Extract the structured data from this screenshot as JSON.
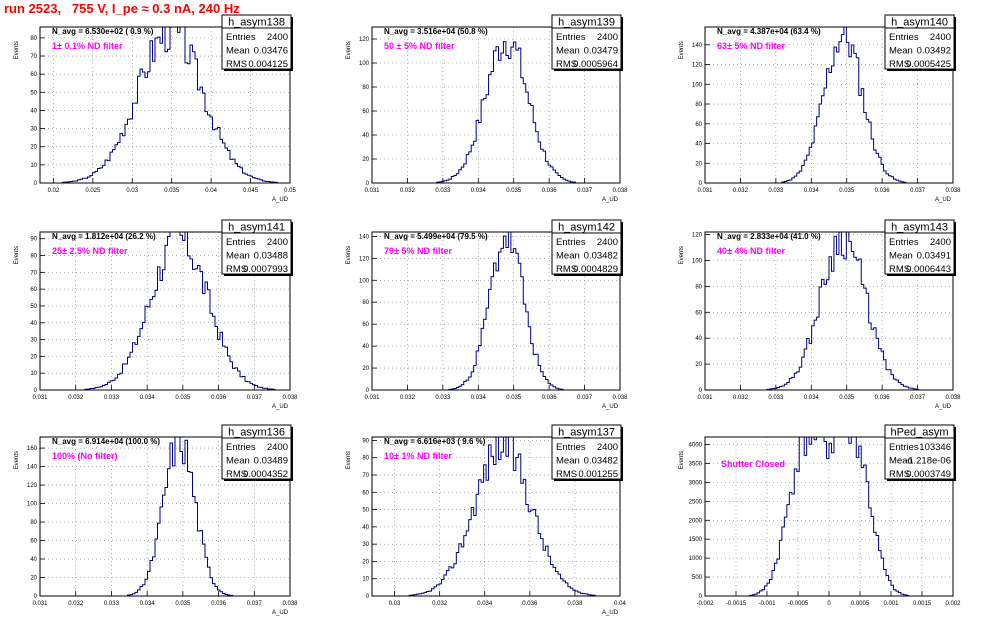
{
  "page": {
    "title": "run 2523,   755 V, I_pe ≈ 0.3 nA, 240 Hz",
    "title_color": "#ff0000"
  },
  "colors": {
    "histogram": "#000080",
    "annotation": "#ff00ff",
    "grid": "#808080",
    "text": "#000000"
  },
  "chart_data": [
    {
      "type": "bar",
      "histogram": "h_asym138",
      "entries": "2400",
      "mean": "0.03476",
      "rms": "0.004125",
      "navg": "N_avg = 6.530e+02 ( 0.9 %)",
      "filter": "1± 0.1% ND filter",
      "xlabel": "A_UD",
      "ylabel": "Events",
      "xlim": [
        0.0183,
        0.05
      ],
      "ylim": [
        0,
        86
      ],
      "center": 0.0348,
      "sigma": 0.0041,
      "peak": 84,
      "seed": 3,
      "xticks": [
        "0.02",
        "0.025",
        "0.03",
        "0.035",
        "0.04",
        "0.045",
        "0.05"
      ],
      "xtickv": [
        0.02,
        0.025,
        0.03,
        0.035,
        0.04,
        0.045,
        0.05
      ],
      "yticks": [
        "0",
        "10",
        "20",
        "30",
        "40",
        "50",
        "60",
        "70",
        "80"
      ],
      "ytickv": [
        0,
        10,
        20,
        30,
        40,
        50,
        60,
        70,
        80
      ]
    },
    {
      "type": "bar",
      "histogram": "h_asym139",
      "entries": "2400",
      "mean": "0.03479",
      "rms": "0.0005964",
      "navg": "N_avg = 3.516e+04 (50.8 %)",
      "filter": "50 ± 5% ND filter",
      "xlabel": "A_UD",
      "ylabel": "Events",
      "xlim": [
        0.031,
        0.038
      ],
      "ylim": [
        0,
        130
      ],
      "center": 0.0348,
      "sigma": 0.0006,
      "peak": 120,
      "seed": 7,
      "xticks": [
        "0.031",
        "0.032",
        "0.033",
        "0.034",
        "0.035",
        "0.036",
        "0.037",
        "0.038"
      ],
      "xtickv": [
        0.031,
        0.032,
        0.033,
        0.034,
        0.035,
        0.036,
        0.037,
        0.038
      ],
      "yticks": [
        "0",
        "20",
        "40",
        "60",
        "80",
        "100",
        "120"
      ],
      "ytickv": [
        0,
        20,
        40,
        60,
        80,
        100,
        120
      ]
    },
    {
      "type": "bar",
      "histogram": "h_asym140",
      "entries": "2400",
      "mean": "0.03492",
      "rms": "0.0005425",
      "navg": "N_avg = 4.387e+04 (63.4 %)",
      "filter": "63± 5% ND filter",
      "xlabel": "A_UD",
      "ylabel": "Events",
      "xlim": [
        0.031,
        0.038
      ],
      "ylim": [
        0,
        158
      ],
      "center": 0.0349,
      "sigma": 0.00054,
      "peak": 150,
      "seed": 11,
      "xticks": [
        "0.031",
        "0.032",
        "0.033",
        "0.034",
        "0.035",
        "0.036",
        "0.037",
        "0.038"
      ],
      "xtickv": [
        0.031,
        0.032,
        0.033,
        0.034,
        0.035,
        0.036,
        0.037,
        0.038
      ],
      "yticks": [
        "0",
        "20",
        "40",
        "60",
        "80",
        "100",
        "120",
        "140"
      ],
      "ytickv": [
        0,
        20,
        40,
        60,
        80,
        100,
        120,
        140
      ]
    },
    {
      "type": "bar",
      "histogram": "h_asym141",
      "entries": "2400",
      "mean": "0.03488",
      "rms": "0.0007993",
      "navg": "N_avg = 1.812e+04 (26.2 %)",
      "filter": "25± 2.5% ND filter",
      "xlabel": "A_UD",
      "ylabel": "Events",
      "xlim": [
        0.031,
        0.038
      ],
      "ylim": [
        0,
        94
      ],
      "center": 0.0349,
      "sigma": 0.0008,
      "peak": 90,
      "seed": 17,
      "xticks": [
        "0.031",
        "0.032",
        "0.033",
        "0.034",
        "0.035",
        "0.036",
        "0.037",
        "0.038"
      ],
      "xtickv": [
        0.031,
        0.032,
        0.033,
        0.034,
        0.035,
        0.036,
        0.037,
        0.038
      ],
      "yticks": [
        "0",
        "10",
        "20",
        "30",
        "40",
        "50",
        "60",
        "70",
        "80",
        "90"
      ],
      "ytickv": [
        0,
        10,
        20,
        30,
        40,
        50,
        60,
        70,
        80,
        90
      ]
    },
    {
      "type": "bar",
      "histogram": "h_asym142",
      "entries": "2400",
      "mean": "0.03482",
      "rms": "0.0004829",
      "navg": "N_avg = 5.499e+04 (79.5 %)",
      "filter": "79± 5% ND filter",
      "xlabel": "A_UD",
      "ylabel": "Events",
      "xlim": [
        0.031,
        0.038
      ],
      "ylim": [
        0,
        144
      ],
      "center": 0.0348,
      "sigma": 0.00048,
      "peak": 140,
      "seed": 23,
      "xticks": [
        "0.031",
        "0.032",
        "0.033",
        "0.034",
        "0.035",
        "0.036",
        "0.037",
        "0.038"
      ],
      "xtickv": [
        0.031,
        0.032,
        0.033,
        0.034,
        0.035,
        0.036,
        0.037,
        0.038
      ],
      "yticks": [
        "0",
        "20",
        "40",
        "60",
        "80",
        "100",
        "120",
        "140"
      ],
      "ytickv": [
        0,
        20,
        40,
        60,
        80,
        100,
        120,
        140
      ]
    },
    {
      "type": "bar",
      "histogram": "h_asym143",
      "entries": "2400",
      "mean": "0.03491",
      "rms": "0.0006443",
      "navg": "N_avg = 2.833e+04 (41.0 %)",
      "filter": "40± 4% ND filter",
      "xlabel": "A_UD",
      "ylabel": "Events",
      "xlim": [
        0.031,
        0.038
      ],
      "ylim": [
        0,
        122
      ],
      "center": 0.0349,
      "sigma": 0.00064,
      "peak": 118,
      "seed": 29,
      "xticks": [
        "0.031",
        "0.032",
        "0.033",
        "0.034",
        "0.035",
        "0.036",
        "0.037",
        "0.038"
      ],
      "xtickv": [
        0.031,
        0.032,
        0.033,
        0.034,
        0.035,
        0.036,
        0.037,
        0.038
      ],
      "yticks": [
        "0",
        "20",
        "40",
        "60",
        "80",
        "100",
        "120"
      ],
      "ytickv": [
        0,
        20,
        40,
        60,
        80,
        100,
        120
      ]
    },
    {
      "type": "bar",
      "histogram": "h_asym136",
      "entries": "2400",
      "mean": "0.03489",
      "rms": "0.0004352",
      "navg": "N_avg = 6.914e+04 (100.0 %)",
      "filter": "100% (No filter)",
      "xlabel": "A_UD",
      "ylabel": "Events",
      "xlim": [
        0.031,
        0.038
      ],
      "ylim": [
        0,
        172
      ],
      "center": 0.0349,
      "sigma": 0.00044,
      "peak": 170,
      "seed": 31,
      "xticks": [
        "0.031",
        "0.032",
        "0.033",
        "0.034",
        "0.035",
        "0.036",
        "0.037",
        "0.038"
      ],
      "xtickv": [
        0.031,
        0.032,
        0.033,
        0.034,
        0.035,
        0.036,
        0.037,
        0.038
      ],
      "yticks": [
        "0",
        "20",
        "40",
        "60",
        "80",
        "100",
        "120",
        "140",
        "160"
      ],
      "ytickv": [
        0,
        20,
        40,
        60,
        80,
        100,
        120,
        140,
        160
      ]
    },
    {
      "type": "bar",
      "histogram": "h_asym137",
      "entries": "2400",
      "mean": "0.03482",
      "rms": "0.001255",
      "navg": "N_avg = 6.616e+03 ( 9.6 %)",
      "filter": "10± 1% ND filter",
      "xlabel": "A_UD",
      "ylabel": "Events",
      "xlim": [
        0.029,
        0.04
      ],
      "ylim": [
        0,
        92
      ],
      "center": 0.0348,
      "sigma": 0.00125,
      "peak": 88,
      "seed": 37,
      "xticks": [
        "0.03",
        "0.032",
        "0.034",
        "0.036",
        "0.038",
        "0.04"
      ],
      "xtickv": [
        0.03,
        0.032,
        0.034,
        0.036,
        0.038,
        0.04
      ],
      "yticks": [
        "0",
        "10",
        "20",
        "30",
        "40",
        "50",
        "60",
        "70",
        "80",
        "90"
      ],
      "ytickv": [
        0,
        10,
        20,
        30,
        40,
        50,
        60,
        70,
        80,
        90
      ]
    },
    {
      "type": "bar",
      "histogram": "hPed_asym",
      "entries": "103346",
      "mean": "-1.218e-06",
      "rms": "0.0003749",
      "navg": "",
      "filter": "Shutter Closed",
      "xlabel": "",
      "ylabel": "Events",
      "xlim": [
        -0.002,
        0.002
      ],
      "ylim": [
        0,
        4200
      ],
      "bimodal": true,
      "peak": 3950,
      "seed": 41,
      "xticks": [
        "-0.002",
        "-0.0015",
        "-0.001",
        "-0.0005",
        "0",
        "0.0005",
        "0.001",
        "0.0015",
        "0.002"
      ],
      "xtickv": [
        -0.002,
        -0.0015,
        -0.001,
        -0.0005,
        0,
        0.0005,
        0.001,
        0.0015,
        0.002
      ],
      "yticks": [
        "0",
        "500",
        "1000",
        "1500",
        "2000",
        "2500",
        "3000",
        "3500",
        "4000"
      ],
      "ytickv": [
        0,
        500,
        1000,
        1500,
        2000,
        2500,
        3000,
        3500,
        4000
      ]
    }
  ]
}
